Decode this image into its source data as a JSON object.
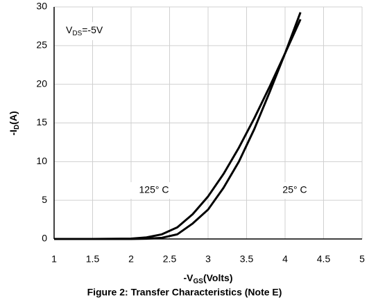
{
  "chart_data": {
    "type": "line",
    "caption": "Figure 2: Transfer Characteristics (Note E)",
    "xlabel": [
      "-V",
      "GS",
      "(Volts)"
    ],
    "ylabel": [
      "-I",
      "D",
      "(A)"
    ],
    "annotation": [
      "V",
      "DS",
      "=-5V"
    ],
    "x": [
      1,
      1.5,
      2,
      2.2,
      2.4,
      2.6,
      2.8,
      3,
      3.2,
      3.4,
      3.6,
      3.8,
      4,
      4.2
    ],
    "series": [
      {
        "name": "125° C",
        "color": "#000000",
        "values": [
          0,
          0,
          0.05,
          0.2,
          0.6,
          1.5,
          3.2,
          5.5,
          8.4,
          11.8,
          15.6,
          19.7,
          24,
          28.4
        ]
      },
      {
        "name": "25° C",
        "color": "#000000",
        "values": [
          0,
          0,
          0,
          0.03,
          0.15,
          0.6,
          2,
          3.8,
          6.6,
          10,
          14.2,
          19,
          24,
          29.3
        ]
      }
    ],
    "xlim": [
      1,
      5
    ],
    "xticks": [
      1,
      1.5,
      2,
      2.5,
      3,
      3.5,
      4,
      4.5,
      5
    ],
    "ylim": [
      0,
      30
    ],
    "yticks": [
      0,
      5,
      10,
      15,
      20,
      25,
      30
    ],
    "grid": true
  }
}
